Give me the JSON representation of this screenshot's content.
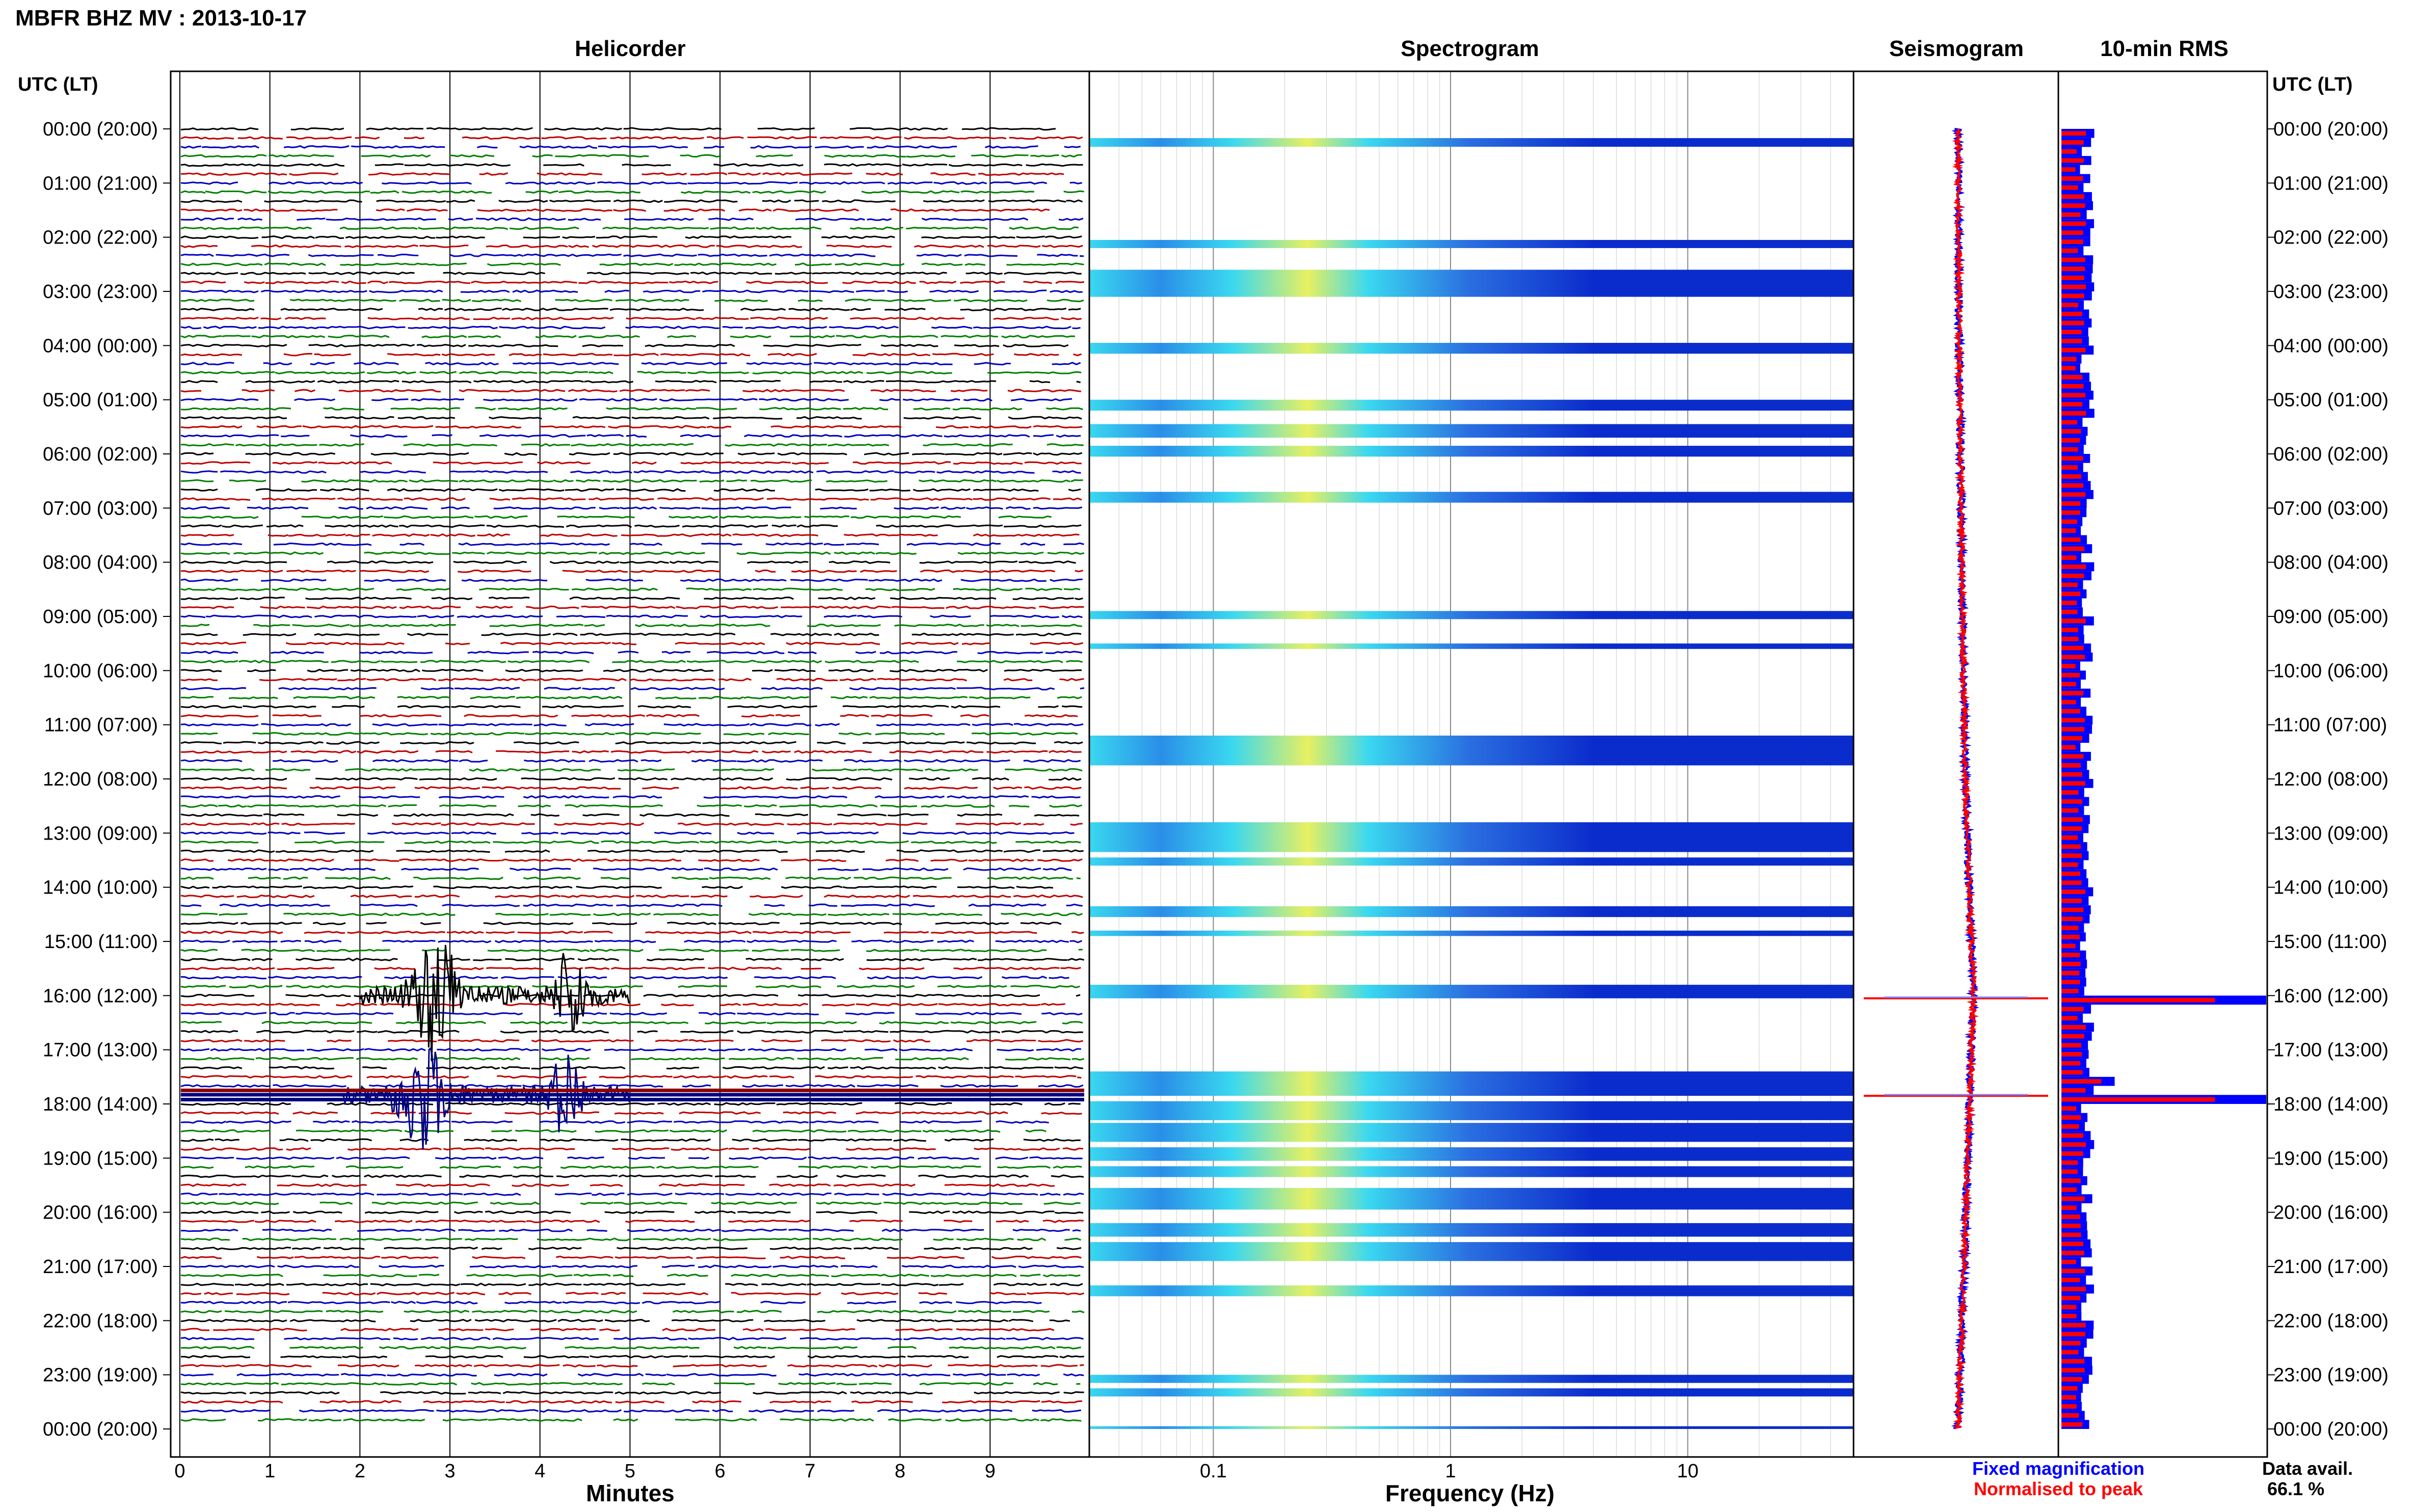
{
  "title": "MBFR BHZ MV : 2013-10-17",
  "panels": {
    "helicorder": "Helicorder",
    "spectrogram": "Spectrogram",
    "seismogram": "Seismogram",
    "rms": "10-min RMS"
  },
  "time_axis_label": "UTC (LT)",
  "time_labels": [
    "00:00 (20:00)",
    "01:00 (21:00)",
    "02:00 (22:00)",
    "03:00 (23:00)",
    "04:00 (00:00)",
    "05:00 (01:00)",
    "06:00 (02:00)",
    "07:00 (03:00)",
    "08:00 (04:00)",
    "09:00 (05:00)",
    "10:00 (06:00)",
    "11:00 (07:00)",
    "12:00 (08:00)",
    "13:00 (09:00)",
    "14:00 (10:00)",
    "15:00 (11:00)",
    "16:00 (12:00)",
    "17:00 (13:00)",
    "18:00 (14:00)",
    "19:00 (15:00)",
    "20:00 (16:00)",
    "21:00 (17:00)",
    "22:00 (18:00)",
    "23:00 (19:00)",
    "00:00 (20:00)"
  ],
  "x_axes": {
    "minutes_label": "Minutes",
    "minutes_ticks": [
      "0",
      "1",
      "2",
      "3",
      "4",
      "5",
      "6",
      "7",
      "8",
      "9"
    ],
    "frequency_label": "Frequency (Hz)",
    "frequency_ticks": [
      "0.1",
      "1",
      "10"
    ]
  },
  "legend": {
    "fixed": "Fixed magnification",
    "normalised": "Normalised to peak",
    "fixed_color": "#0000ff",
    "normalised_color": "#ff0000"
  },
  "data_availability": {
    "label": "Data avail.",
    "value": "66.1 %"
  },
  "colors": {
    "helicorder_traces": [
      "#000000",
      "#c00000",
      "#0000c0",
      "#008000"
    ],
    "spectrogram_low": "#0b2ccc",
    "spectrogram_mid": "#3ad8f0",
    "spectrogram_high": "#e8f060"
  },
  "chart_data": [
    {
      "type": "heatmap",
      "name": "Helicorder",
      "x": {
        "label": "Minutes",
        "range": [
          0,
          10
        ]
      },
      "y": {
        "label": "UTC (LT)",
        "range_hours": [
          0,
          24
        ]
      },
      "lines_per_hour": 6,
      "events": [
        {
          "line_hour": 16.0,
          "start_min": 2.0,
          "end_min": 5.0,
          "peak_amp": 1.0
        },
        {
          "line_hour": 17.83,
          "start_min": 1.8,
          "end_min": 5.0,
          "peak_amp": 0.9
        }
      ]
    },
    {
      "type": "heatmap",
      "name": "Spectrogram",
      "x": {
        "label": "Frequency (Hz)",
        "scale": "log",
        "range": [
          0.03,
          50
        ],
        "ticks": [
          0.1,
          1,
          10
        ]
      },
      "y": {
        "label": "UTC (LT)",
        "range_hours": [
          0,
          24
        ]
      },
      "active_bands_hours": [
        [
          0.17,
          0.33
        ],
        [
          2.05,
          2.2
        ],
        [
          2.6,
          3.1
        ],
        [
          3.95,
          4.15
        ],
        [
          5.0,
          5.2
        ],
        [
          5.45,
          5.7
        ],
        [
          5.85,
          6.05
        ],
        [
          6.7,
          6.9
        ],
        [
          8.9,
          9.05
        ],
        [
          9.5,
          9.6
        ],
        [
          11.2,
          11.75
        ],
        [
          12.8,
          13.35
        ],
        [
          13.45,
          13.6
        ],
        [
          14.35,
          14.55
        ],
        [
          14.8,
          14.9
        ],
        [
          15.8,
          16.05
        ],
        [
          17.4,
          17.85
        ],
        [
          17.95,
          18.3
        ],
        [
          18.35,
          18.7
        ],
        [
          18.8,
          19.05
        ],
        [
          19.15,
          19.35
        ],
        [
          19.55,
          19.95
        ],
        [
          20.2,
          20.45
        ],
        [
          20.55,
          20.9
        ],
        [
          21.35,
          21.55
        ],
        [
          23.0,
          23.15
        ],
        [
          23.25,
          23.4
        ],
        [
          23.95,
          24.0
        ]
      ],
      "peak_frequency_hz": 0.25
    },
    {
      "type": "line",
      "name": "Seismogram",
      "series": [
        {
          "name": "Fixed magnification",
          "color": "#0000ff"
        },
        {
          "name": "Normalised to peak",
          "color": "#ff0000"
        }
      ],
      "drift_hours": [
        0,
        4,
        8,
        12,
        16,
        20,
        24
      ],
      "drift_offset": [
        0,
        0.2,
        0.6,
        1.2,
        2.5,
        1.3,
        0
      ],
      "spikes_hours": [
        16.05,
        17.85
      ]
    },
    {
      "type": "bar",
      "name": "10-min RMS",
      "x": {
        "range": [
          0,
          1
        ]
      },
      "series": [
        {
          "name": "Fixed magnification",
          "color": "#0000ff"
        },
        {
          "name": "Normalised to peak",
          "color": "#ff0000"
        }
      ],
      "bin_minutes": 10,
      "typical_level": 0.12,
      "peaks": [
        {
          "hour": 16.0,
          "value": 1.0
        },
        {
          "hour": 17.8,
          "value": 1.0
        },
        {
          "hour": 17.45,
          "value": 0.26
        }
      ]
    }
  ]
}
